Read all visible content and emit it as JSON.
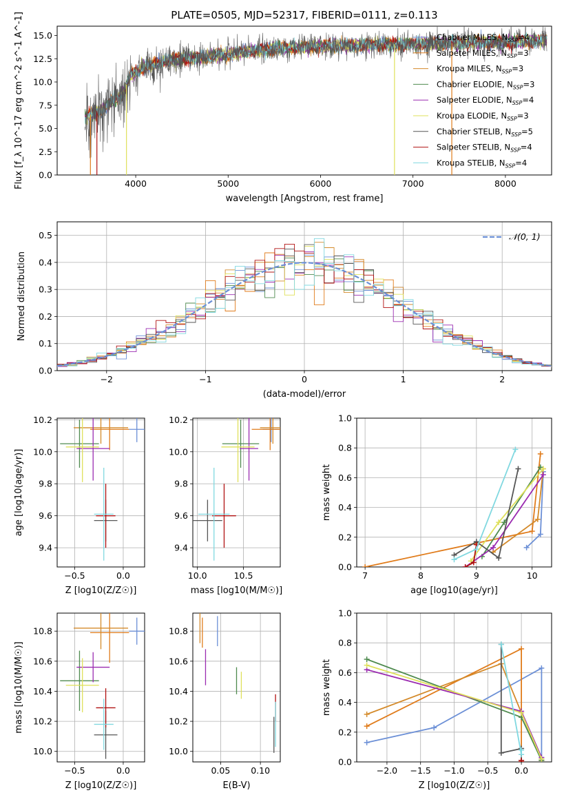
{
  "figure": {
    "title": "PLATE=0505, MJD=52317, FIBERID=0111, z=0.113"
  },
  "models": [
    {
      "name": "Chabrier MILES",
      "nssp": "4",
      "color": "#6b8fd6"
    },
    {
      "name": "Salpeter MILES",
      "nssp": "3",
      "color": "#e07b1a"
    },
    {
      "name": "Kroupa MILES",
      "nssp": "3",
      "color": "#d48a2a"
    },
    {
      "name": "Chabrier ELODIE",
      "nssp": "3",
      "color": "#4e8a4e"
    },
    {
      "name": "Salpeter ELODIE",
      "nssp": "4",
      "color": "#9a2ab0"
    },
    {
      "name": "Kroupa ELODIE",
      "nssp": "3",
      "color": "#dfe05a"
    },
    {
      "name": "Chabrier STELIB",
      "nssp": "5",
      "color": "#555555"
    },
    {
      "name": "Salpeter STELIB",
      "nssp": "4",
      "color": "#b01010"
    },
    {
      "name": "Kroupa STELIB",
      "nssp": "4",
      "color": "#80d8e0"
    }
  ],
  "chart_data": [
    {
      "id": "spectrum",
      "type": "line",
      "title": "PLATE=0505, MJD=52317, FIBERID=0111, z=0.113",
      "xlabel": "wavelength [Angstrom, rest frame]",
      "ylabel": "Flux [f_λ 10^-17 erg cm^-2 s^-1 A^-1]",
      "xlim": [
        3150,
        8500
      ],
      "ylim": [
        0,
        16
      ],
      "xticks": [
        4000,
        5000,
        6000,
        7000,
        8000
      ],
      "yticks": [
        0.0,
        2.5,
        5.0,
        7.5,
        10.0,
        12.5,
        15.0
      ],
      "legend": "right",
      "data_range": [
        3450,
        8450
      ],
      "continuum": [
        [
          3450,
          6.3
        ],
        [
          3600,
          6.8
        ],
        [
          3850,
          8.6
        ],
        [
          3950,
          10.8
        ],
        [
          4150,
          11.8
        ],
        [
          4400,
          12.4
        ],
        [
          4700,
          12.6
        ],
        [
          5000,
          13.0
        ],
        [
          5500,
          13.6
        ],
        [
          6000,
          13.8
        ],
        [
          6500,
          14.0
        ],
        [
          7000,
          14.1
        ],
        [
          7500,
          14.2
        ],
        [
          8000,
          14.3
        ],
        [
          8450,
          14.5
        ]
      ]
    },
    {
      "id": "residuals",
      "type": "area",
      "xlabel": "(data-model)/error",
      "ylabel": "Normed distribution",
      "xlim": [
        -2.5,
        2.5
      ],
      "ylim": [
        0,
        0.55
      ],
      "xticks": [
        -2,
        -1,
        0,
        1,
        2
      ],
      "yticks": [
        0.0,
        0.1,
        0.2,
        0.3,
        0.4,
        0.5
      ],
      "grid": true,
      "legend": "top-right",
      "reference": {
        "name": "𝒩(0, 1)",
        "mu": 0,
        "sigma": 1
      },
      "bin_width": 0.1
    },
    {
      "id": "age-vs-Z",
      "type": "scatter",
      "xlabel": "Z [log10(Z/Z☉)]",
      "ylabel": "age [log10(age/yr)]",
      "xlim": [
        -0.68,
        0.22
      ],
      "ylim": [
        9.28,
        10.21
      ],
      "xticks": [
        -0.5,
        0.0
      ],
      "yticks": [
        9.4,
        9.6,
        9.8,
        10.0,
        10.2
      ],
      "grid": true
    },
    {
      "id": "age-vs-mass",
      "type": "scatter",
      "xlabel": "mass [log10(M/M☉)]",
      "ylabel": "",
      "xlim": [
        9.95,
        10.9
      ],
      "ylim": [
        9.28,
        10.21
      ],
      "xticks": [
        10.0,
        10.5
      ],
      "yticks": [
        9.4,
        9.6,
        9.8,
        10.0,
        10.2
      ],
      "grid": true
    },
    {
      "id": "mass-weight-vs-age",
      "type": "line",
      "xlabel": "age [log10(age/yr)]",
      "ylabel": "mass weight",
      "xlim": [
        6.85,
        10.35
      ],
      "ylim": [
        0,
        1
      ],
      "xticks": [
        7,
        8,
        9,
        10
      ],
      "yticks": [
        0.0,
        0.2,
        0.4,
        0.6,
        0.8,
        1.0
      ],
      "grid": true
    },
    {
      "id": "mass-vs-Z",
      "type": "scatter",
      "xlabel": "Z [log10(Z/Z☉)]",
      "ylabel": "mass [log10(M/M☉)]",
      "xlim": [
        -0.68,
        0.22
      ],
      "ylim": [
        9.93,
        10.92
      ],
      "xticks": [
        -0.5,
        0.0
      ],
      "yticks": [
        10.0,
        10.2,
        10.4,
        10.6,
        10.8
      ],
      "grid": true
    },
    {
      "id": "mass-vs-ebv",
      "type": "scatter",
      "xlabel": "E(B-V)",
      "ylabel": "",
      "xlim": [
        0.015,
        0.125
      ],
      "ylim": [
        9.93,
        10.92
      ],
      "xticks": [
        0.05,
        0.1
      ],
      "yticks": [
        10.0,
        10.2,
        10.4,
        10.6,
        10.8
      ],
      "grid": true
    },
    {
      "id": "mass-weight-vs-Z",
      "type": "line",
      "xlabel": "Z [log10(Z/Z☉)]",
      "ylabel": "mass weight",
      "xlim": [
        -2.45,
        0.45
      ],
      "ylim": [
        0,
        1
      ],
      "xticks": [
        -2.0,
        -1.5,
        -1.0,
        -0.5,
        0.0
      ],
      "yticks": [
        0.0,
        0.2,
        0.4,
        0.6,
        0.8,
        1.0
      ],
      "grid": true
    }
  ],
  "sampled_points": {
    "age_Z_mass": [
      {
        "model": 0,
        "Z": 0.14,
        "Zerr": 0.08,
        "age": 10.14,
        "ageErr": 0.08,
        "mass": 10.8,
        "massErr": 0.09,
        "ebv": 0.046,
        "ebvErr": 0.1
      },
      {
        "model": 1,
        "Z": -0.14,
        "Zerr": 0.2,
        "age": 10.14,
        "ageErr": 0.13,
        "mass": 10.79,
        "massErr": 0.2,
        "ebv": 0.027,
        "ebvErr": 0.1
      },
      {
        "model": 2,
        "Z": -0.23,
        "Zerr": 0.28,
        "age": 10.15,
        "ageErr": 0.1,
        "mass": 10.82,
        "massErr": 0.14,
        "ebv": 0.024,
        "ebvErr": 0.1
      },
      {
        "model": 3,
        "Z": -0.45,
        "Zerr": 0.2,
        "age": 10.05,
        "ageErr": 0.15,
        "mass": 10.47,
        "massErr": 0.2,
        "ebv": 0.07,
        "ebvErr": 0.09
      },
      {
        "model": 4,
        "Z": -0.31,
        "Zerr": 0.17,
        "age": 10.02,
        "ageErr": 0.2,
        "mass": 10.56,
        "massErr": 0.1,
        "ebv": 0.031,
        "ebvErr": 0.12
      },
      {
        "model": 5,
        "Z": -0.42,
        "Zerr": 0.17,
        "age": 10.03,
        "ageErr": 0.22,
        "mass": 10.44,
        "massErr": 0.18,
        "ebv": 0.076,
        "ebvErr": 0.09
      },
      {
        "model": 6,
        "Z": -0.18,
        "Zerr": 0.12,
        "age": 9.57,
        "ageErr": 0.13,
        "mass": 10.11,
        "massErr": 0.16,
        "ebv": 0.117,
        "ebvErr": 0.12
      },
      {
        "model": 7,
        "Z": -0.18,
        "Zerr": 0.1,
        "age": 9.6,
        "ageErr": 0.2,
        "mass": 10.29,
        "massErr": 0.13,
        "ebv": 0.119,
        "ebvErr": 0.09
      },
      {
        "model": 8,
        "Z": -0.2,
        "Zerr": 0.1,
        "age": 9.61,
        "ageErr": 0.29,
        "mass": 10.18,
        "massErr": 0.17,
        "ebv": 0.119,
        "ebvErr": 0.15
      }
    ],
    "weights_age": [
      {
        "model": 0,
        "points": [
          [
            9.9,
            0.13
          ],
          [
            10.15,
            0.22
          ],
          [
            10.2,
            0.64
          ]
        ]
      },
      {
        "model": 1,
        "points": [
          [
            7.0,
            0.0
          ],
          [
            10.0,
            0.24
          ],
          [
            10.15,
            0.76
          ]
        ]
      },
      {
        "model": 2,
        "points": [
          [
            9.3,
            0.1
          ],
          [
            10.1,
            0.32
          ],
          [
            10.2,
            0.66
          ]
        ]
      },
      {
        "model": 3,
        "points": [
          [
            9.1,
            0.07
          ],
          [
            9.5,
            0.3
          ],
          [
            10.15,
            0.67
          ]
        ]
      },
      {
        "model": 4,
        "points": [
          [
            8.8,
            0.0
          ],
          [
            9.3,
            0.13
          ],
          [
            10.2,
            0.62
          ]
        ]
      },
      {
        "model": 5,
        "points": [
          [
            8.9,
            0.04
          ],
          [
            9.4,
            0.3
          ],
          [
            10.2,
            0.66
          ]
        ]
      },
      {
        "model": 6,
        "points": [
          [
            8.6,
            0.08
          ],
          [
            9.0,
            0.17
          ],
          [
            9.4,
            0.06
          ],
          [
            9.75,
            0.66
          ]
        ]
      },
      {
        "model": 7,
        "points": [
          [
            8.8,
            0.0
          ],
          [
            8.95,
            0.03
          ],
          [
            9.0,
            0.15
          ]
        ]
      },
      {
        "model": 8,
        "points": [
          [
            8.6,
            0.05
          ],
          [
            9.0,
            0.12
          ],
          [
            9.7,
            0.79
          ]
        ]
      }
    ],
    "weights_Z": [
      {
        "model": 0,
        "points": [
          [
            -2.3,
            0.13
          ],
          [
            -1.3,
            0.23
          ],
          [
            0.3,
            0.63
          ],
          [
            0.3,
            0.02
          ]
        ]
      },
      {
        "model": 1,
        "points": [
          [
            -2.3,
            0.24
          ],
          [
            0.0,
            0.76
          ],
          [
            0.0,
            0.0
          ]
        ]
      },
      {
        "model": 2,
        "points": [
          [
            -2.3,
            0.32
          ],
          [
            -0.3,
            0.66
          ],
          [
            0.0,
            0.33
          ],
          [
            0.3,
            0.01
          ]
        ]
      },
      {
        "model": 3,
        "points": [
          [
            -2.3,
            0.69
          ],
          [
            0.0,
            0.3
          ],
          [
            0.3,
            0.01
          ]
        ]
      },
      {
        "model": 4,
        "points": [
          [
            -2.3,
            0.62
          ],
          [
            0.0,
            0.34
          ],
          [
            0.3,
            0.03
          ]
        ]
      },
      {
        "model": 5,
        "points": [
          [
            -2.3,
            0.65
          ],
          [
            0.0,
            0.33
          ],
          [
            0.3,
            0.02
          ]
        ]
      },
      {
        "model": 6,
        "points": [
          [
            -0.3,
            0.79
          ],
          [
            -0.3,
            0.06
          ],
          [
            0.0,
            0.09
          ],
          [
            0.0,
            0.01
          ]
        ]
      },
      {
        "model": 7,
        "points": [
          [
            0.0,
            0.0
          ],
          [
            0.0,
            0.01
          ]
        ]
      },
      {
        "model": 8,
        "points": [
          [
            -0.3,
            0.79
          ],
          [
            0.0,
            0.05
          ],
          [
            0.0,
            0.08
          ]
        ]
      }
    ]
  }
}
